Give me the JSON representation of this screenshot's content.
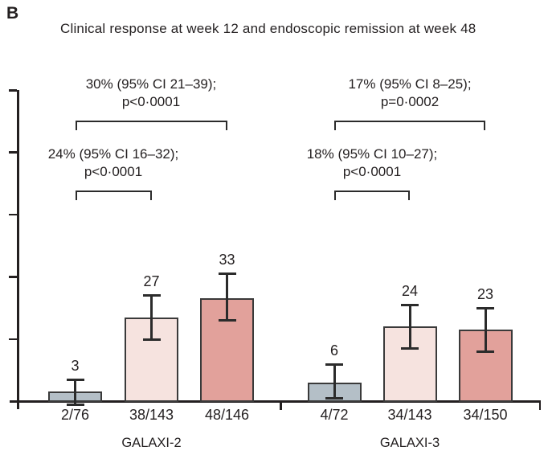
{
  "panel_label": "B",
  "title": "Clinical response at week 12 and endoscopic remission at week 48",
  "chart_data": {
    "type": "bar",
    "title": "Clinical response at week 12 and endoscopic remission at week 48",
    "xlabel": "",
    "ylabel": "",
    "ylim": [
      0,
      100
    ],
    "ytick_step": 20,
    "ytick_labels_visible": false,
    "grid": false,
    "legend": "none",
    "error_bars": "95% CI whiskers with caps",
    "series_colors": [
      "#b4bfc7",
      "#f6e3df",
      "#e2a19b"
    ],
    "bar_border_color": "#3a3a3a",
    "axis_color": "#231f20",
    "annotation_color": "#231f20",
    "groups": [
      {
        "label": "GALAXI-2",
        "bars": [
          {
            "value": 3,
            "fraction": "2/76",
            "ci_low": -1,
            "ci_high": 7
          },
          {
            "value": 27,
            "fraction": "38/143",
            "ci_low": 20,
            "ci_high": 34
          },
          {
            "value": 33,
            "fraction": "48/146",
            "ci_low": 26,
            "ci_high": 41
          }
        ],
        "comparisons": [
          {
            "bars": [
              0,
              2
            ],
            "level": "outer",
            "estimate": "30% (95% CI 21–39);",
            "p_value": "p<0·0001"
          },
          {
            "bars": [
              0,
              1
            ],
            "level": "inner",
            "estimate": "24% (95% CI 16–32);",
            "p_value": "p<0·0001"
          }
        ]
      },
      {
        "label": "GALAXI-3",
        "bars": [
          {
            "value": 6,
            "fraction": "4/72",
            "ci_low": 1,
            "ci_high": 12
          },
          {
            "value": 24,
            "fraction": "34/143",
            "ci_low": 17,
            "ci_high": 31
          },
          {
            "value": 23,
            "fraction": "34/150",
            "ci_low": 16,
            "ci_high": 30
          }
        ],
        "comparisons": [
          {
            "bars": [
              0,
              2
            ],
            "level": "outer",
            "estimate": "17% (95% CI 8–25);",
            "p_value": "p=0·0002"
          },
          {
            "bars": [
              0,
              1
            ],
            "level": "inner",
            "estimate": "18% (95% CI 10–27);",
            "p_value": "p<0·0001"
          }
        ]
      }
    ]
  }
}
